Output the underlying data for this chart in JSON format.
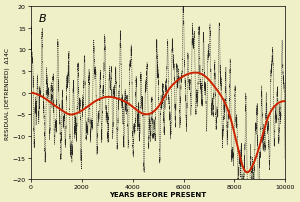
{
  "title_label": "B",
  "xlabel": "YEARS BEFORE PRESENT",
  "ylabel": "RESIDUAL (DETRENDED)  Δ14C",
  "xlim": [
    0,
    10000
  ],
  "ylim": [
    -20,
    20
  ],
  "xticks": [
    0,
    2000,
    4000,
    6000,
    8000,
    10000
  ],
  "yticks": [
    -20,
    -15,
    -10,
    -5,
    0,
    5,
    10,
    15,
    20
  ],
  "background_color": "#f0f0c8",
  "smooth_color": "#cc2200",
  "data_color": "#111111",
  "smooth_linewidth": 1.4,
  "data_linewidth": 0.4,
  "smooth_x": [
    0,
    300,
    600,
    900,
    1200,
    1500,
    1800,
    2100,
    2400,
    2700,
    3000,
    3300,
    3600,
    3900,
    4200,
    4500,
    4800,
    5100,
    5400,
    5700,
    6000,
    6300,
    6600,
    6900,
    7200,
    7500,
    7800,
    8100,
    8400,
    8700,
    9000,
    9300,
    9600,
    9900,
    10000
  ],
  "smooth_y": [
    0.0,
    -0.5,
    -1.5,
    -2.8,
    -4.0,
    -5.0,
    -4.8,
    -3.8,
    -2.5,
    -1.5,
    -1.0,
    -1.2,
    -1.8,
    -2.8,
    -4.2,
    -5.0,
    -4.5,
    -2.5,
    0.5,
    2.5,
    3.8,
    4.5,
    4.5,
    3.5,
    1.5,
    -1.0,
    -5.0,
    -12.0,
    -18.0,
    -17.0,
    -12.0,
    -6.0,
    -3.0,
    -2.0,
    -2.0
  ]
}
